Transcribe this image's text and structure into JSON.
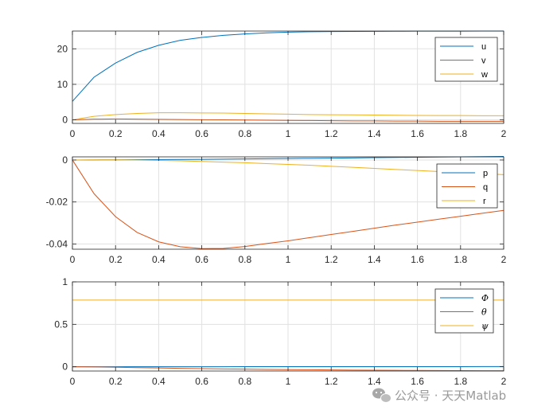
{
  "colors": {
    "series1": "#0072BD",
    "series2": "#D95319",
    "series3": "#EDB120",
    "axis": "#262626",
    "grid": "#e1e1e1",
    "watermark": "#9a9a9a"
  },
  "watermark": {
    "icon": "wechat-icon",
    "text": "公众号 · 天天Matlab"
  },
  "chart_data": [
    {
      "type": "line",
      "xlim": [
        0,
        2
      ],
      "ylim": [
        -1,
        25
      ],
      "xticks": [
        0,
        0.2,
        0.4,
        0.6,
        0.8,
        1,
        1.2,
        1.4,
        1.6,
        1.8,
        2
      ],
      "xtick_labels": [
        "0",
        "0.2",
        "0.4",
        "0.6",
        "0.8",
        "1",
        "1.2",
        "1.4",
        "1.6",
        "1.8",
        "2"
      ],
      "yticks": [
        0,
        10,
        20
      ],
      "ytick_labels": [
        "0",
        "10",
        "20"
      ],
      "grid": true,
      "legend_placement": "top-right",
      "x": [
        0,
        0.1,
        0.2,
        0.3,
        0.4,
        0.5,
        0.6,
        0.7,
        0.8,
        0.9,
        1.0,
        1.1,
        1.2,
        1.3,
        1.4,
        1.5,
        1.6,
        1.7,
        1.8,
        1.9,
        2.0
      ],
      "series": [
        {
          "name": "u",
          "values": [
            5.2,
            12.0,
            16.0,
            19.0,
            21.0,
            22.4,
            23.2,
            23.8,
            24.2,
            24.5,
            24.7,
            24.8,
            24.85,
            24.9,
            24.92,
            24.95,
            24.96,
            24.97,
            24.98,
            24.99,
            25.0
          ]
        },
        {
          "name": "v",
          "values": [
            0,
            0.2,
            0.25,
            0.2,
            0.15,
            0.1,
            0.05,
            0.0,
            -0.05,
            -0.1,
            -0.15,
            -0.2,
            -0.25,
            -0.3,
            -0.3,
            -0.35,
            -0.35,
            -0.4,
            -0.4,
            -0.4,
            -0.4
          ]
        },
        {
          "name": "w",
          "values": [
            0,
            1.0,
            1.5,
            1.8,
            2.0,
            2.0,
            1.95,
            1.9,
            1.8,
            1.7,
            1.6,
            1.5,
            1.45,
            1.4,
            1.35,
            1.3,
            1.25,
            1.2,
            1.2,
            1.15,
            1.15
          ]
        }
      ]
    },
    {
      "type": "line",
      "xlim": [
        0,
        2
      ],
      "ylim": [
        -0.0425,
        0.0015
      ],
      "xticks": [
        0,
        0.2,
        0.4,
        0.6,
        0.8,
        1,
        1.2,
        1.4,
        1.6,
        1.8,
        2
      ],
      "xtick_labels": [
        "0",
        "0.2",
        "0.4",
        "0.6",
        "0.8",
        "1",
        "1.2",
        "1.4",
        "1.6",
        "1.8",
        "2"
      ],
      "yticks": [
        0,
        -0.02,
        -0.04
      ],
      "ytick_labels": [
        "0",
        "-0.02",
        "-0.04"
      ],
      "grid": true,
      "legend_placement": "right",
      "x": [
        0,
        0.1,
        0.2,
        0.3,
        0.4,
        0.5,
        0.6,
        0.7,
        0.8,
        0.9,
        1.0,
        1.1,
        1.2,
        1.3,
        1.4,
        1.5,
        1.6,
        1.7,
        1.8,
        1.9,
        2.0
      ],
      "series": [
        {
          "name": "p",
          "values": [
            0,
            5e-05,
            0.0001,
            0.00015,
            0.0002,
            0.00025,
            0.0003,
            0.0004,
            0.0005,
            0.0006,
            0.0007,
            0.0008,
            0.0009,
            0.001,
            0.0011,
            0.0012,
            0.0013,
            0.0014,
            0.0015,
            0.0016,
            0.0017
          ]
        },
        {
          "name": "q",
          "values": [
            0,
            -0.016,
            -0.027,
            -0.0345,
            -0.039,
            -0.0413,
            -0.0422,
            -0.0421,
            -0.0412,
            -0.0398,
            -0.0385,
            -0.037,
            -0.0355,
            -0.034,
            -0.0325,
            -0.031,
            -0.0296,
            -0.0282,
            -0.0268,
            -0.0254,
            -0.024
          ]
        },
        {
          "name": "r",
          "values": [
            0,
            0.0001,
            0.0001,
            0.0,
            -0.0002,
            -0.0004,
            -0.0007,
            -0.001,
            -0.0013,
            -0.0017,
            -0.0021,
            -0.0025,
            -0.003,
            -0.0035,
            -0.004,
            -0.0045,
            -0.005,
            -0.0055,
            -0.006,
            -0.0065,
            -0.007
          ]
        }
      ]
    },
    {
      "type": "line",
      "xlim": [
        0,
        2
      ],
      "ylim": [
        -0.05,
        1
      ],
      "xticks": [
        0,
        0.2,
        0.4,
        0.6,
        0.8,
        1,
        1.2,
        1.4,
        1.6,
        1.8,
        2
      ],
      "xtick_labels": [
        "0",
        "0.2",
        "0.4",
        "0.6",
        "0.8",
        "1",
        "1.2",
        "1.4",
        "1.6",
        "1.8",
        "2"
      ],
      "yticks": [
        0,
        0.5,
        1
      ],
      "ytick_labels": [
        "0",
        "0.5",
        "1"
      ],
      "grid": true,
      "legend_placement": "top-right",
      "x": [
        0,
        0.1,
        0.2,
        0.3,
        0.4,
        0.5,
        0.6,
        0.7,
        0.8,
        0.9,
        1.0,
        1.1,
        1.2,
        1.3,
        1.4,
        1.5,
        1.6,
        1.7,
        1.8,
        1.9,
        2.0
      ],
      "series": [
        {
          "name": "Φ",
          "values": [
            0,
            0.0,
            0.0,
            0.0,
            0.0,
            0.0,
            0.0,
            0.0,
            0.001,
            0.001,
            0.001,
            0.001,
            0.001,
            0.001,
            0.002,
            0.002,
            0.002,
            0.002,
            0.002,
            0.003,
            0.003
          ]
        },
        {
          "name": "θ",
          "values": [
            0,
            -0.002,
            -0.006,
            -0.01,
            -0.014,
            -0.018,
            -0.022,
            -0.025,
            -0.028,
            -0.031,
            -0.033,
            -0.035,
            -0.037,
            -0.039,
            -0.041,
            -0.042,
            -0.043,
            -0.044,
            -0.045,
            -0.046,
            -0.047
          ]
        },
        {
          "name": "ψ",
          "values": [
            0.785,
            0.785,
            0.785,
            0.785,
            0.785,
            0.785,
            0.785,
            0.785,
            0.785,
            0.785,
            0.785,
            0.785,
            0.785,
            0.785,
            0.785,
            0.785,
            0.785,
            0.785,
            0.785,
            0.785,
            0.785
          ]
        }
      ]
    }
  ]
}
